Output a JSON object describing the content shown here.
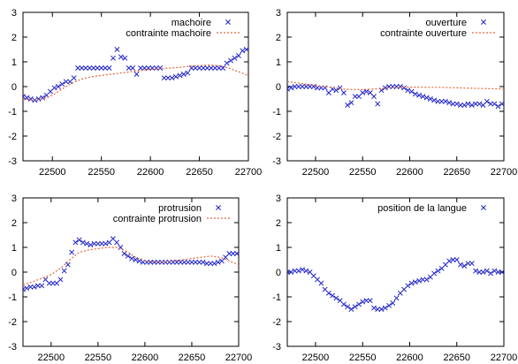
{
  "colors": {
    "marker": "#1f24c8",
    "constraint": "#e0683a"
  },
  "chart_data": [
    {
      "type": "scatter",
      "xlim": [
        22470,
        22700
      ],
      "ylim": [
        -3,
        3
      ],
      "xticks": [
        22500,
        22550,
        22600,
        22650,
        22700
      ],
      "yticks": [
        -3,
        -2,
        -1,
        0,
        1,
        2,
        3
      ],
      "legend_position": "top-right",
      "grid": false,
      "series": [
        {
          "name": "machoire",
          "style": "marker",
          "x": [
            22470,
            22474,
            22478,
            22482,
            22486,
            22490,
            22494,
            22498,
            22502,
            22506,
            22510,
            22514,
            22518,
            22522,
            22526,
            22530,
            22534,
            22538,
            22542,
            22546,
            22550,
            22554,
            22558,
            22562,
            22566,
            22570,
            22574,
            22578,
            22582,
            22586,
            22590,
            22594,
            22598,
            22602,
            22606,
            22610,
            22614,
            22618,
            22622,
            22626,
            22630,
            22634,
            22638,
            22642,
            22646,
            22650,
            22654,
            22658,
            22662,
            22666,
            22670,
            22674,
            22678,
            22682,
            22686,
            22690,
            22694,
            22698
          ],
          "y": [
            -0.4,
            -0.45,
            -0.5,
            -0.55,
            -0.5,
            -0.45,
            -0.35,
            -0.2,
            -0.05,
            0.0,
            0.1,
            0.2,
            0.2,
            0.35,
            0.75,
            0.75,
            0.75,
            0.75,
            0.75,
            0.75,
            0.75,
            0.75,
            0.75,
            1.15,
            1.5,
            1.2,
            1.15,
            0.75,
            0.75,
            0.5,
            0.75,
            0.75,
            0.75,
            0.75,
            0.75,
            0.75,
            0.35,
            0.35,
            0.35,
            0.4,
            0.45,
            0.5,
            0.55,
            0.75,
            0.75,
            0.75,
            0.75,
            0.75,
            0.75,
            0.75,
            0.75,
            0.75,
            0.95,
            1.05,
            1.15,
            1.25,
            1.45,
            1.5
          ]
        },
        {
          "name": "contrainte machoire",
          "style": "line",
          "x": [
            22470,
            22480,
            22490,
            22500,
            22510,
            22520,
            22530,
            22540,
            22550,
            22560,
            22570,
            22580,
            22590,
            22600,
            22610,
            22620,
            22630,
            22640,
            22650,
            22660,
            22670,
            22680,
            22690,
            22700
          ],
          "y": [
            -0.5,
            -0.55,
            -0.5,
            -0.35,
            -0.1,
            0.15,
            0.3,
            0.4,
            0.45,
            0.5,
            0.55,
            0.6,
            0.65,
            0.7,
            0.72,
            0.75,
            0.78,
            0.82,
            0.85,
            0.87,
            0.85,
            0.75,
            0.6,
            0.45
          ]
        }
      ]
    },
    {
      "type": "scatter",
      "xlim": [
        22470,
        22700
      ],
      "ylim": [
        -3,
        3
      ],
      "xticks": [
        22500,
        22550,
        22600,
        22650,
        22700
      ],
      "yticks": [
        -3,
        -2,
        -1,
        0,
        1,
        2,
        3
      ],
      "legend_position": "top-right",
      "grid": false,
      "series": [
        {
          "name": "ouverture",
          "style": "marker",
          "x": [
            22470,
            22474,
            22478,
            22482,
            22486,
            22490,
            22494,
            22498,
            22502,
            22506,
            22510,
            22514,
            22518,
            22522,
            22526,
            22530,
            22534,
            22538,
            22542,
            22546,
            22550,
            22554,
            22558,
            22562,
            22566,
            22570,
            22574,
            22578,
            22582,
            22586,
            22590,
            22594,
            22598,
            22602,
            22606,
            22610,
            22614,
            22618,
            22622,
            22626,
            22630,
            22634,
            22638,
            22642,
            22646,
            22650,
            22654,
            22658,
            22662,
            22666,
            22670,
            22674,
            22678,
            22682,
            22686,
            22690,
            22694,
            22698
          ],
          "y": [
            -0.1,
            -0.05,
            0.0,
            0.0,
            0.0,
            0.0,
            0.0,
            0.0,
            -0.05,
            -0.05,
            -0.05,
            -0.25,
            -0.1,
            -0.15,
            -0.05,
            -0.25,
            -0.75,
            -0.65,
            -0.4,
            -0.4,
            -0.25,
            -0.2,
            -0.25,
            -0.4,
            -0.7,
            -0.15,
            -0.05,
            0.0,
            0.0,
            0.0,
            0.0,
            -0.05,
            -0.15,
            -0.2,
            -0.3,
            -0.35,
            -0.4,
            -0.45,
            -0.5,
            -0.55,
            -0.6,
            -0.6,
            -0.6,
            -0.65,
            -0.7,
            -0.7,
            -0.75,
            -0.75,
            -0.7,
            -0.75,
            -0.7,
            -0.7,
            -0.75,
            -0.6,
            -0.7,
            -0.7,
            -0.8,
            -0.7
          ]
        },
        {
          "name": "contrainte ouverture",
          "style": "line",
          "x": [
            22470,
            22480,
            22490,
            22500,
            22510,
            22520,
            22530,
            22540,
            22550,
            22560,
            22570,
            22580,
            22590,
            22600,
            22610,
            22620,
            22630,
            22640,
            22650,
            22660,
            22670,
            22680,
            22690,
            22700
          ],
          "y": [
            0.2,
            0.15,
            0.1,
            0.05,
            0.0,
            -0.05,
            -0.1,
            -0.12,
            -0.12,
            -0.1,
            -0.08,
            -0.05,
            -0.03,
            -0.02,
            -0.02,
            -0.03,
            -0.03,
            -0.04,
            -0.05,
            -0.06,
            -0.07,
            -0.08,
            -0.09,
            -0.1
          ]
        }
      ]
    },
    {
      "type": "scatter",
      "xlim": [
        22470,
        22700
      ],
      "ylim": [
        -3,
        3
      ],
      "xticks": [
        22500,
        22550,
        22600,
        22650,
        22700
      ],
      "yticks": [
        -3,
        -2,
        -1,
        0,
        1,
        2,
        3
      ],
      "legend_position": "top-right",
      "grid": false,
      "series": [
        {
          "name": "protrusion",
          "style": "marker",
          "x": [
            22470,
            22474,
            22478,
            22482,
            22486,
            22490,
            22494,
            22498,
            22502,
            22506,
            22510,
            22514,
            22518,
            22522,
            22526,
            22530,
            22534,
            22538,
            22542,
            22546,
            22550,
            22554,
            22558,
            22562,
            22566,
            22570,
            22574,
            22578,
            22582,
            22586,
            22590,
            22594,
            22598,
            22602,
            22606,
            22610,
            22614,
            22618,
            22622,
            22626,
            22630,
            22634,
            22638,
            22642,
            22646,
            22650,
            22654,
            22658,
            22662,
            22666,
            22670,
            22674,
            22678,
            22682,
            22686,
            22690,
            22694,
            22698
          ],
          "y": [
            -0.7,
            -0.65,
            -0.6,
            -0.6,
            -0.55,
            -0.55,
            -0.3,
            -0.45,
            -0.45,
            -0.45,
            -0.3,
            0.05,
            0.3,
            0.8,
            1.2,
            1.3,
            1.2,
            1.15,
            1.1,
            1.15,
            1.15,
            1.15,
            1.15,
            1.2,
            1.35,
            1.2,
            1.0,
            0.75,
            0.65,
            0.55,
            0.5,
            0.45,
            0.4,
            0.4,
            0.4,
            0.4,
            0.4,
            0.4,
            0.4,
            0.4,
            0.4,
            0.4,
            0.4,
            0.4,
            0.4,
            0.4,
            0.4,
            0.4,
            0.4,
            0.35,
            0.35,
            0.35,
            0.4,
            0.45,
            0.6,
            0.75,
            0.75,
            0.75
          ]
        },
        {
          "name": "contrainte protrusion",
          "style": "line",
          "x": [
            22470,
            22480,
            22490,
            22500,
            22510,
            22520,
            22530,
            22540,
            22550,
            22560,
            22570,
            22580,
            22590,
            22600,
            22610,
            22620,
            22630,
            22640,
            22650,
            22660,
            22670,
            22680,
            22690,
            22700
          ],
          "y": [
            -0.5,
            -0.4,
            -0.25,
            -0.1,
            0.15,
            0.5,
            0.8,
            0.9,
            0.95,
            1.0,
            1.0,
            0.85,
            0.6,
            0.45,
            0.4,
            0.4,
            0.45,
            0.5,
            0.55,
            0.6,
            0.65,
            0.6,
            0.45,
            0.3
          ]
        }
      ]
    },
    {
      "type": "scatter",
      "xlim": [
        22470,
        22700
      ],
      "ylim": [
        -3,
        3
      ],
      "xticks": [
        22500,
        22550,
        22600,
        22650,
        22700
      ],
      "yticks": [
        -3,
        -2,
        -1,
        0,
        1,
        2,
        3
      ],
      "legend_position": "top-right",
      "grid": false,
      "series": [
        {
          "name": "position de la langue",
          "style": "marker",
          "x": [
            22470,
            22474,
            22478,
            22482,
            22486,
            22490,
            22494,
            22498,
            22502,
            22506,
            22510,
            22514,
            22518,
            22522,
            22526,
            22530,
            22534,
            22538,
            22542,
            22546,
            22550,
            22554,
            22558,
            22562,
            22566,
            22570,
            22574,
            22578,
            22582,
            22586,
            22590,
            22594,
            22598,
            22602,
            22606,
            22610,
            22614,
            22618,
            22622,
            22626,
            22630,
            22634,
            22638,
            22642,
            22646,
            22650,
            22654,
            22658,
            22662,
            22666,
            22670,
            22674,
            22678,
            22682,
            22686,
            22690,
            22694,
            22698
          ],
          "y": [
            0.0,
            0.0,
            0.05,
            0.05,
            0.1,
            0.05,
            0.0,
            -0.15,
            -0.3,
            -0.45,
            -0.7,
            -0.85,
            -0.95,
            -1.05,
            -1.15,
            -1.3,
            -1.4,
            -1.5,
            -1.4,
            -1.3,
            -1.2,
            -1.15,
            -1.15,
            -1.45,
            -1.5,
            -1.5,
            -1.45,
            -1.35,
            -1.25,
            -1.05,
            -0.85,
            -0.7,
            -0.55,
            -0.45,
            -0.4,
            -0.35,
            -0.3,
            -0.3,
            -0.2,
            -0.05,
            0.05,
            0.15,
            0.3,
            0.45,
            0.5,
            0.5,
            0.3,
            0.25,
            0.35,
            0.35,
            0.05,
            0.0,
            0.0,
            0.05,
            -0.05,
            0.05,
            0.0,
            0.0
          ]
        }
      ]
    }
  ]
}
